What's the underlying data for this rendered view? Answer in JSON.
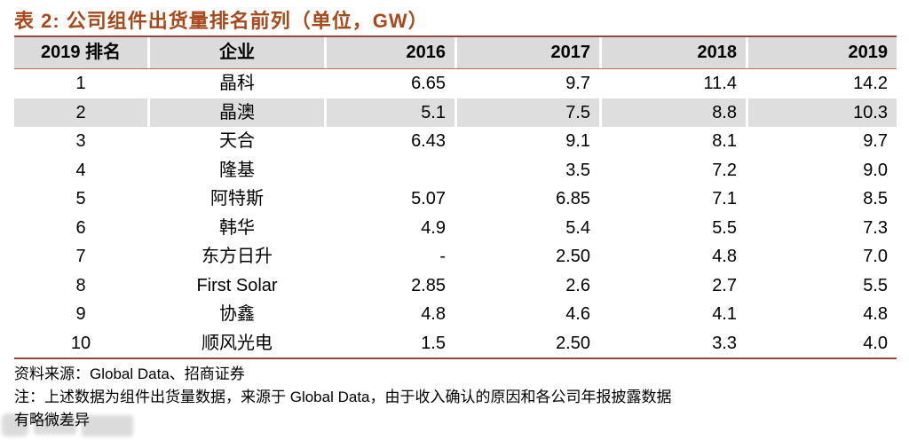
{
  "title": "表 2: 公司组件出货量排名前列（单位，GW）",
  "table": {
    "columns": [
      "2019 排名",
      "企业",
      "2016",
      "2017",
      "2018",
      "2019"
    ],
    "highlight_row_index": 1,
    "rows": [
      [
        "1",
        "晶科",
        "6.65",
        "9.7",
        "11.4",
        "14.2"
      ],
      [
        "2",
        "晶澳",
        "5.1",
        "7.5",
        "8.8",
        "10.3"
      ],
      [
        "3",
        "天合",
        "6.43",
        "9.1",
        "8.1",
        "9.7"
      ],
      [
        "4",
        "隆基",
        "",
        "3.5",
        "7.2",
        "9.0"
      ],
      [
        "5",
        "阿特斯",
        "5.07",
        "6.85",
        "7.1",
        "8.5"
      ],
      [
        "6",
        "韩华",
        "4.9",
        "5.4",
        "5.5",
        "7.3"
      ],
      [
        "7",
        "东方日升",
        "-",
        "2.50",
        "4.8",
        "7.0"
      ],
      [
        "8",
        "First Solar",
        "2.85",
        "2.6",
        "2.7",
        "5.5"
      ],
      [
        "9",
        "协鑫",
        "4.8",
        "4.6",
        "4.1",
        "4.8"
      ],
      [
        "10",
        "顺风光电",
        "1.5",
        "2.50",
        "3.3",
        "4.0"
      ]
    ]
  },
  "footer": {
    "source": "资料来源：Global Data、招商证券",
    "note": "注：上述数据为组件出货量数据，来源于 Global Data，由于收入确认的原因和各公司年报披露数据",
    "note_continued": "有略微差异"
  },
  "colors": {
    "title": "#a8491b",
    "rule": "#95483a",
    "rule_light": "#b5705c",
    "header_bg": "#dbdbdb",
    "stripe_bg": "#dedede"
  }
}
